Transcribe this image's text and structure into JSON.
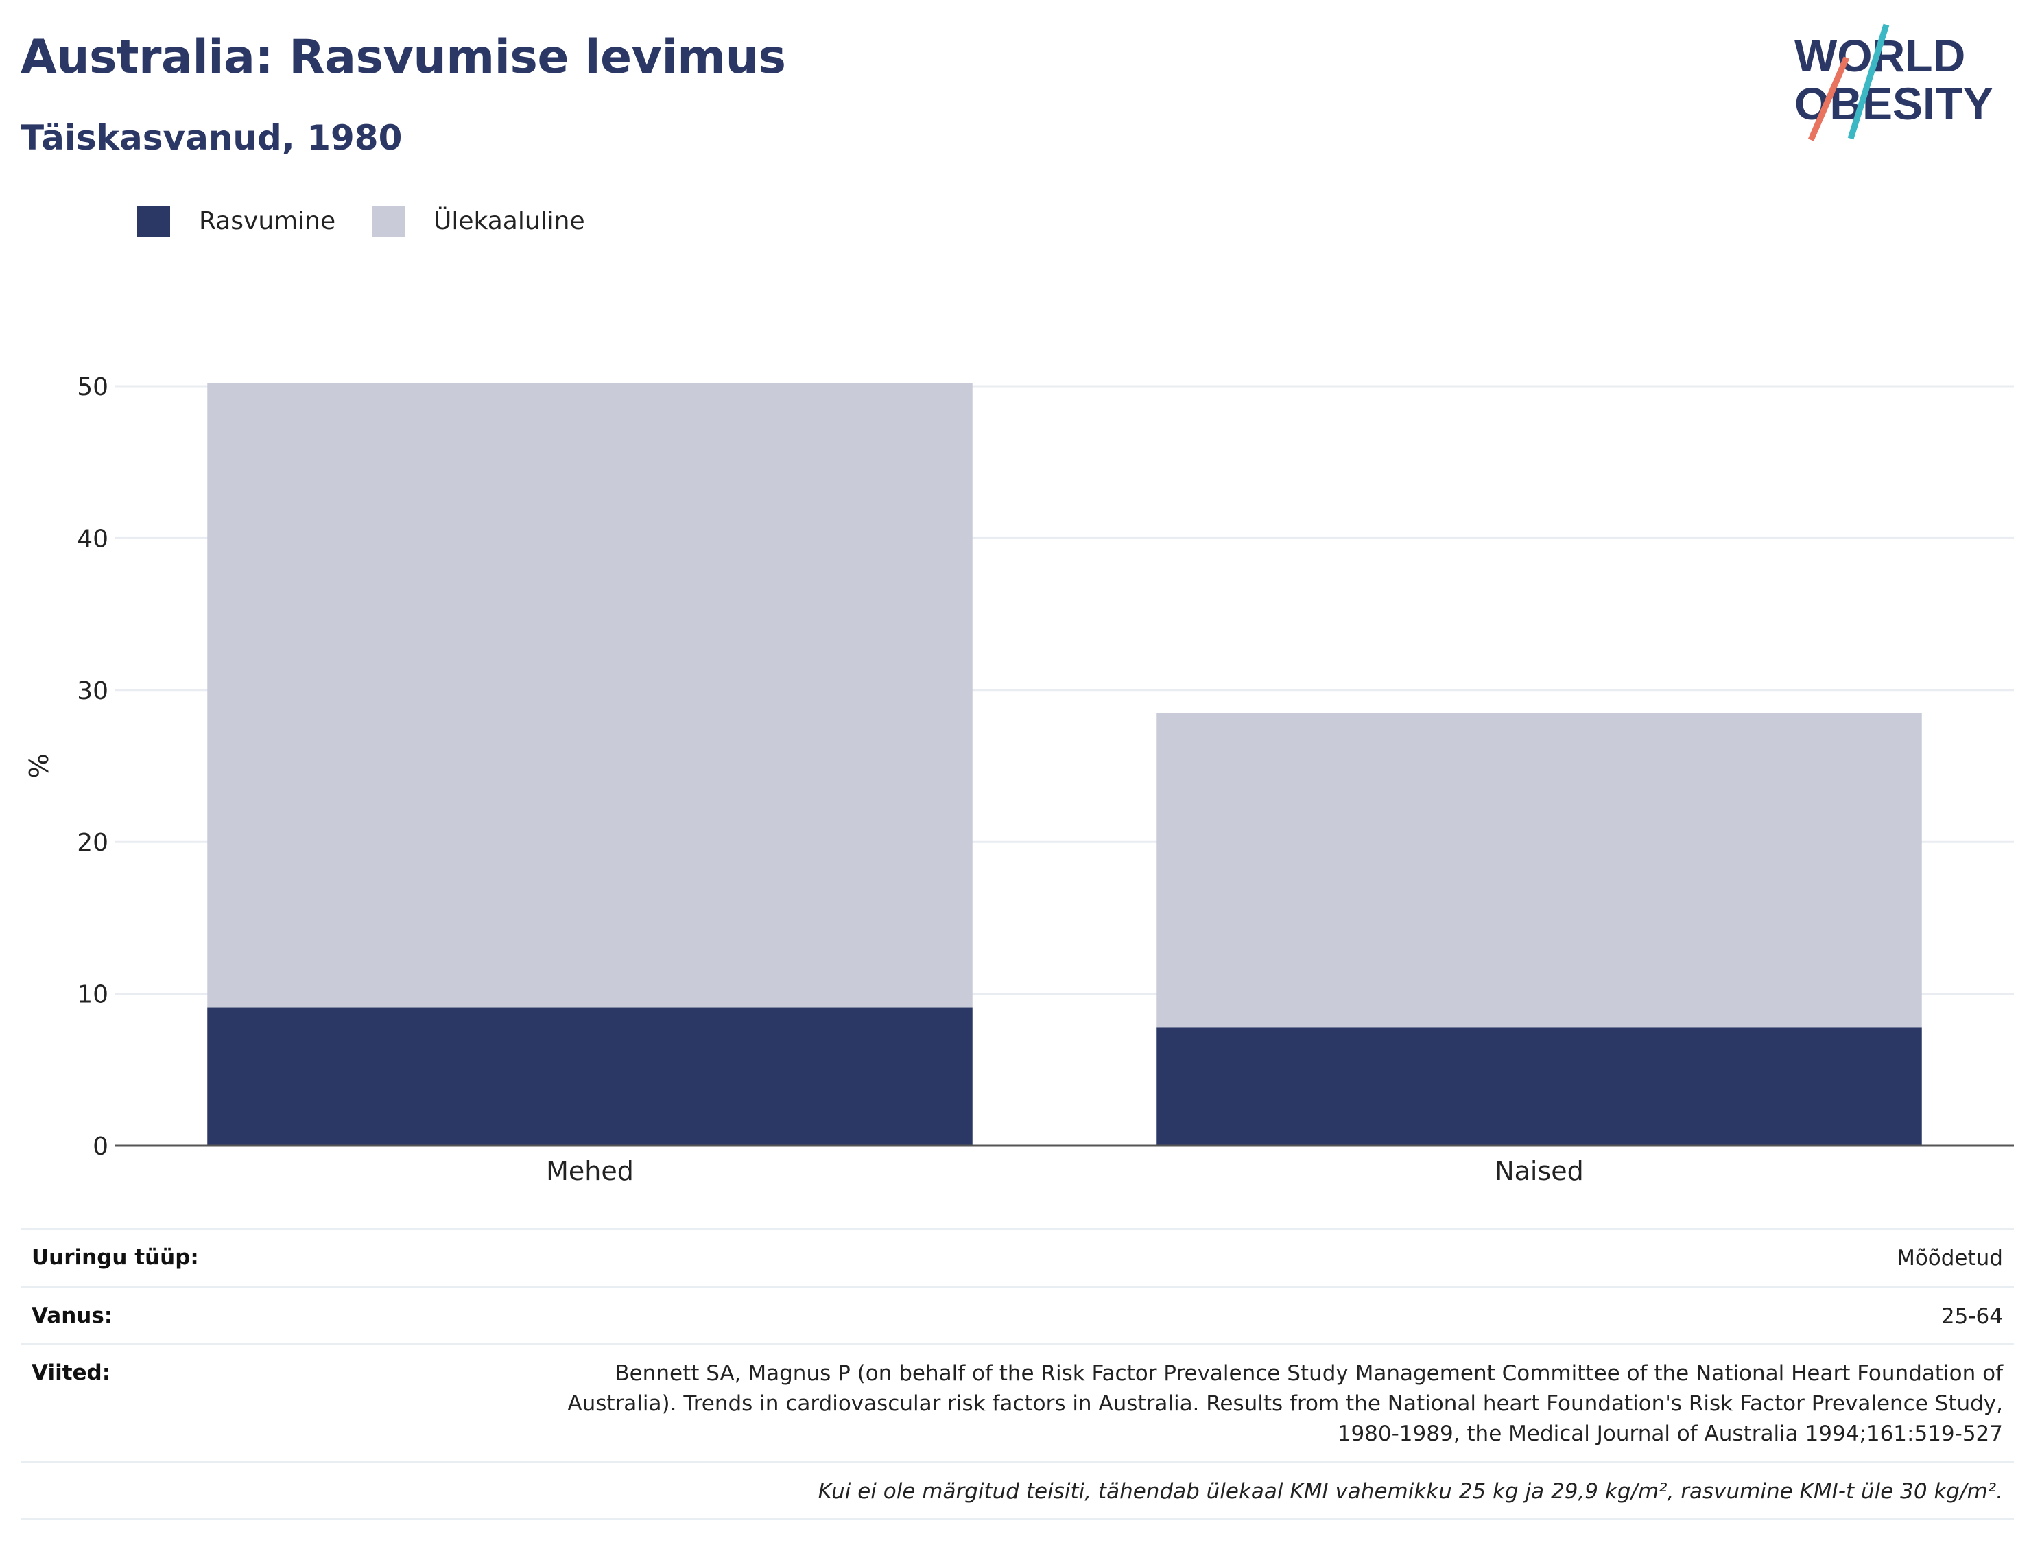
{
  "header": {
    "title": "Australia: Rasvumise levimus",
    "subtitle": "Täiskasvanud, 1980",
    "logo": {
      "line1": "WORLD",
      "line2": "OBESITY",
      "colors": {
        "text": "#2b3764",
        "teal": "#3bb8c4",
        "coral": "#e8735f"
      }
    }
  },
  "legend": [
    {
      "label": "Rasvumine",
      "color": "#2b3764"
    },
    {
      "label": "Ülekaaluline",
      "color": "#c9ccd8"
    }
  ],
  "chart_data": {
    "type": "bar",
    "stacked": true,
    "categories": [
      "Mehed",
      "Naised"
    ],
    "series": [
      {
        "name": "Rasvumine",
        "values": [
          9.1,
          7.8
        ],
        "color": "#2b3764"
      },
      {
        "name": "Ülekaaluline",
        "values": [
          41.1,
          20.7
        ],
        "color": "#c9ccd8"
      }
    ],
    "ylabel": "%",
    "ylim": [
      0,
      50
    ],
    "yticks": [
      0,
      10,
      20,
      30,
      40,
      50
    ],
    "grid": true,
    "legend_position": "top-left"
  },
  "meta": {
    "survey_type": {
      "label": "Uuringu tüüp:",
      "value": "Mõõdetud"
    },
    "age": {
      "label": "Vanus:",
      "value": "25-64"
    },
    "references": {
      "label": "Viited:",
      "lines": [
        "Bennett SA, Magnus P (on behalf of the Risk Factor Prevalence Study Management Committee of the National Heart Foundation of",
        "Australia). Trends in cardiovascular risk factors in Australia. Results from the National heart Foundation's Risk Factor Prevalence Study,",
        "1980-1989, the Medical Journal of Australia 1994;161:519-527"
      ]
    },
    "note": "Kui ei ole märgitud teisiti, tähendab ülekaal KMI vahemikku 25 kg ja 29,9 kg/m², rasvumine KMI-t üle 30 kg/m²."
  }
}
